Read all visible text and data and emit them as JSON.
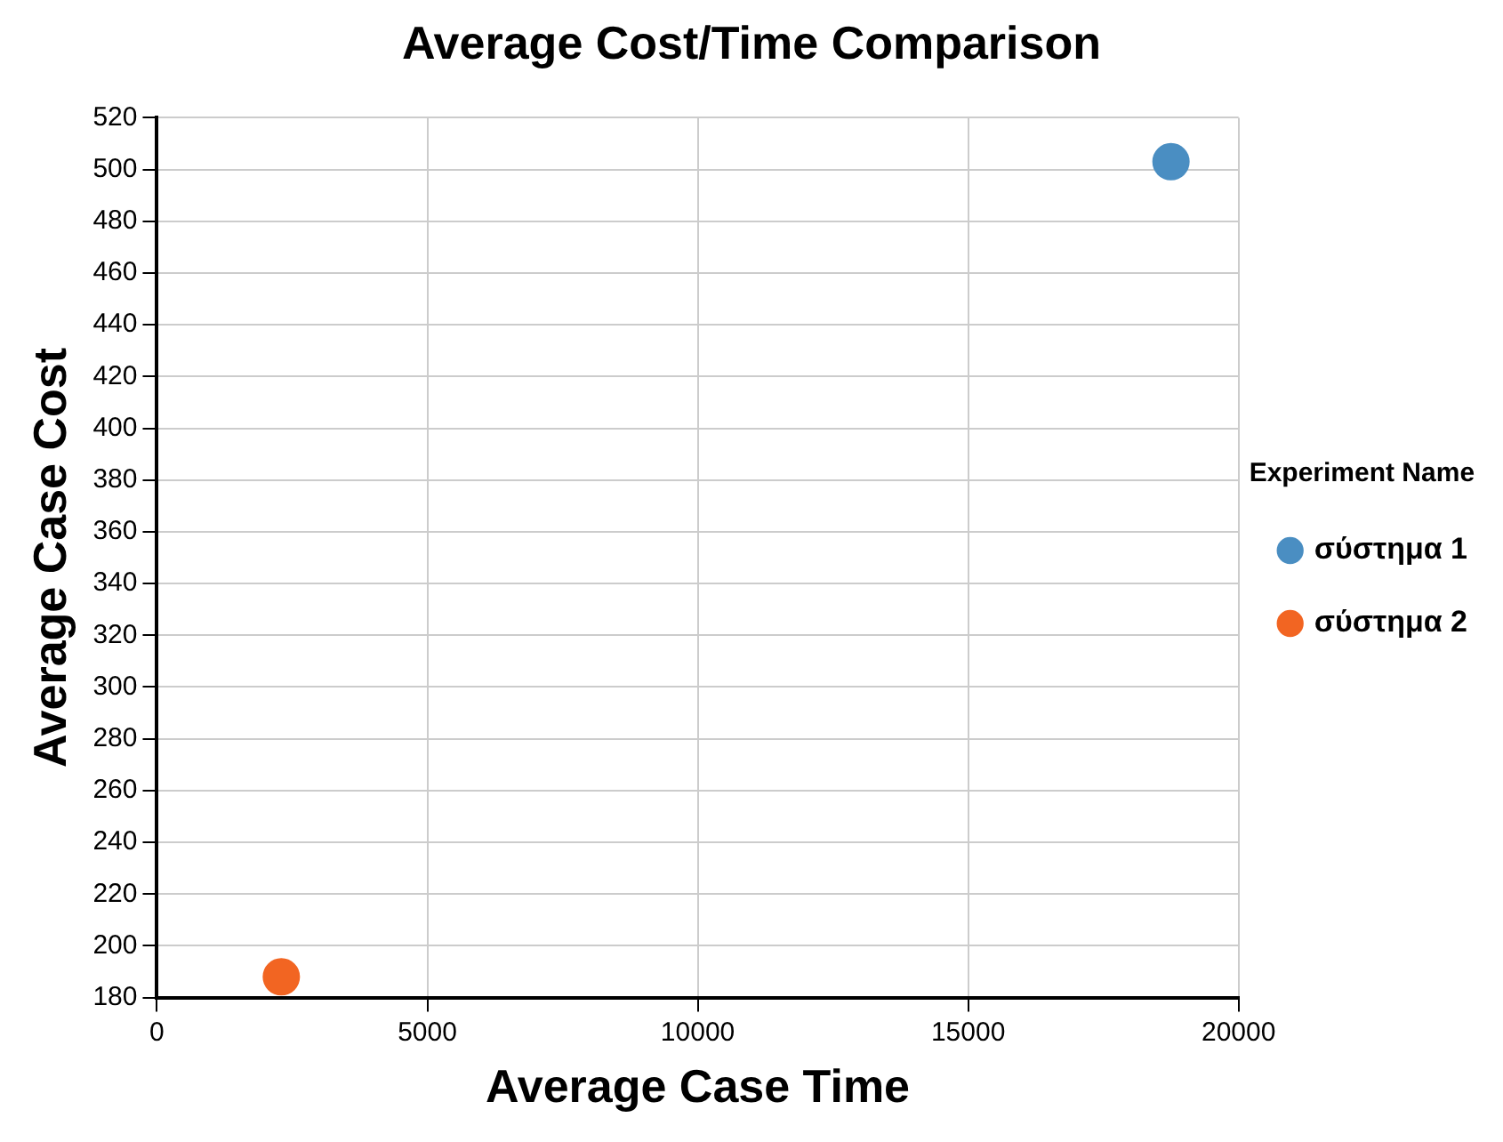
{
  "chart_data": {
    "type": "scatter",
    "title": "Average Cost/Time Comparison",
    "xlabel": "Average Case Time",
    "ylabel": "Average Case Cost",
    "legend_title": "Experiment Name",
    "series": [
      {
        "name": "σύστημα 1",
        "color": "#4a8ec2",
        "x": [
          18750
        ],
        "values": [
          503
        ]
      },
      {
        "name": "σύστημα 2",
        "color": "#f26522",
        "x": [
          2300
        ],
        "values": [
          188
        ]
      }
    ],
    "xlim": [
      0,
      20000
    ],
    "xticks": [
      0,
      5000,
      10000,
      15000,
      20000
    ],
    "ylim": [
      180,
      520
    ],
    "yticks": [
      180,
      200,
      220,
      240,
      260,
      280,
      300,
      320,
      340,
      360,
      380,
      400,
      420,
      440,
      460,
      480,
      500,
      520
    ],
    "grid": true,
    "legend": "right",
    "marker": "circle"
  }
}
